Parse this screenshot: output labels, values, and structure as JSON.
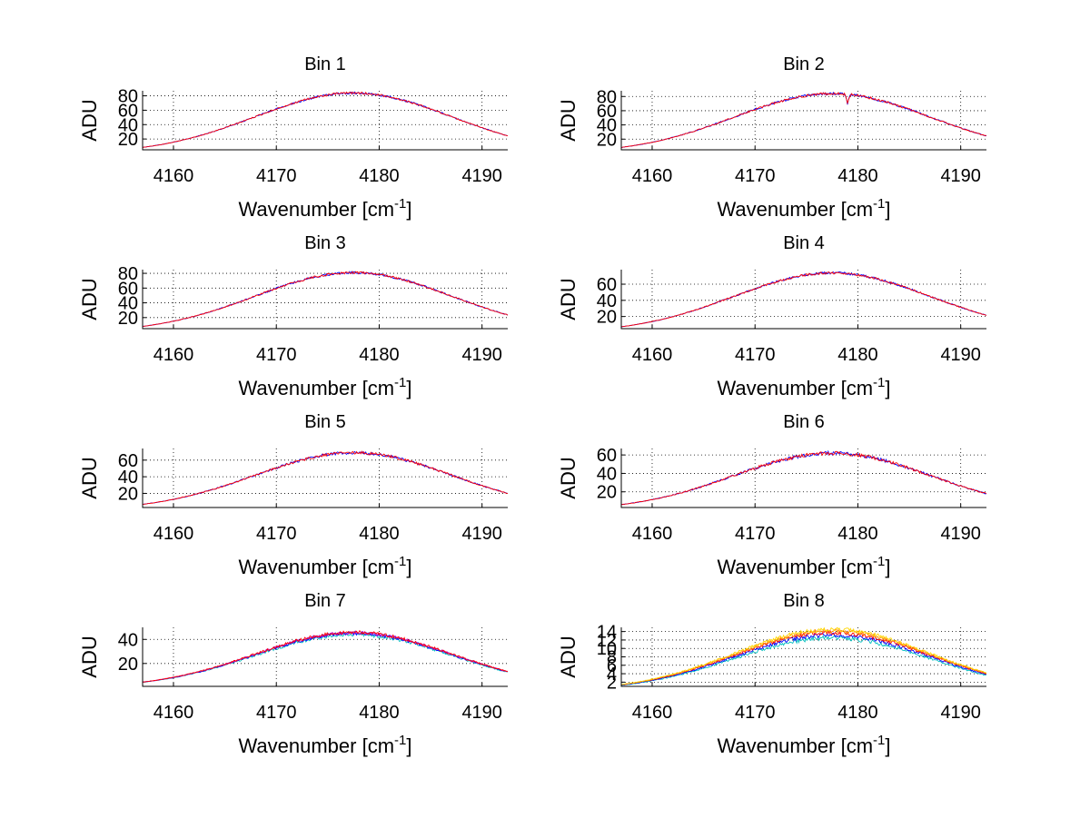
{
  "chart_data": [
    {
      "type": "line",
      "title": "Bin 1",
      "xlabel": "Wavenumber [cm",
      "xlabel_sup": "-1",
      "xlabel_end": "]",
      "ylabel": "ADU",
      "xlim": [
        4157,
        4192.5
      ],
      "ylim": [
        5,
        87
      ],
      "xticks": [
        4160,
        4170,
        4180,
        4190
      ],
      "yticks": [
        20,
        40,
        60,
        80
      ],
      "grid": true,
      "series": [
        {
          "color": "#0000ff",
          "shape": {
            "center": 4177.5,
            "width": 13.5,
            "peak": 84,
            "noise": 1.5,
            "dip_at": null,
            "dip_depth": 0
          },
          "x": [],
          "y": []
        },
        {
          "color": "#ff0000",
          "shape": {
            "center": 4177.5,
            "width": 13.5,
            "peak": 84,
            "noise": 1.5,
            "dip_at": null,
            "dip_depth": 0
          },
          "x": [],
          "y": []
        }
      ]
    },
    {
      "type": "line",
      "title": "Bin 2",
      "xlabel": "Wavenumber [cm",
      "xlabel_sup": "-1",
      "xlabel_end": "]",
      "ylabel": "ADU",
      "xlim": [
        4157,
        4192.5
      ],
      "ylim": [
        5,
        88
      ],
      "xticks": [
        4160,
        4170,
        4180,
        4190
      ],
      "yticks": [
        20,
        40,
        60,
        80
      ],
      "grid": true,
      "series": [
        {
          "color": "#0000ff",
          "shape": {
            "center": 4177.5,
            "width": 13.5,
            "peak": 84,
            "noise": 1.8,
            "dip_at": 4179,
            "dip_depth": 14
          },
          "x": [],
          "y": []
        },
        {
          "color": "#ff0000",
          "shape": {
            "center": 4177.5,
            "width": 13.5,
            "peak": 84,
            "noise": 1.8,
            "dip_at": 4179,
            "dip_depth": 14
          },
          "x": [],
          "y": []
        }
      ]
    },
    {
      "type": "line",
      "title": "Bin 3",
      "xlabel": "Wavenumber [cm",
      "xlabel_sup": "-1",
      "xlabel_end": "]",
      "ylabel": "ADU",
      "xlim": [
        4157,
        4192.5
      ],
      "ylim": [
        5,
        85
      ],
      "xticks": [
        4160,
        4170,
        4180,
        4190
      ],
      "yticks": [
        20,
        40,
        60,
        80
      ],
      "grid": true,
      "series": [
        {
          "color": "#0000ff",
          "shape": {
            "center": 4177.5,
            "width": 13.5,
            "peak": 81,
            "noise": 1.6,
            "dip_at": null,
            "dip_depth": 0
          },
          "x": [],
          "y": []
        },
        {
          "color": "#ff0000",
          "shape": {
            "center": 4177.5,
            "width": 13.5,
            "peak": 81,
            "noise": 1.6,
            "dip_at": null,
            "dip_depth": 0
          },
          "x": [],
          "y": []
        }
      ]
    },
    {
      "type": "line",
      "title": "Bin 4",
      "xlabel": "Wavenumber [cm",
      "xlabel_sup": "-1",
      "xlabel_end": "]",
      "ylabel": "ADU",
      "xlim": [
        4157,
        4192.5
      ],
      "ylim": [
        5,
        78
      ],
      "xticks": [
        4160,
        4170,
        4180,
        4190
      ],
      "yticks": [
        20,
        40,
        60
      ],
      "grid": true,
      "series": [
        {
          "color": "#0000ff",
          "shape": {
            "center": 4177.5,
            "width": 13.5,
            "peak": 74,
            "noise": 1.5,
            "dip_at": null,
            "dip_depth": 0
          },
          "x": [],
          "y": []
        },
        {
          "color": "#ff0000",
          "shape": {
            "center": 4177.5,
            "width": 13.5,
            "peak": 74,
            "noise": 1.5,
            "dip_at": null,
            "dip_depth": 0
          },
          "x": [],
          "y": []
        }
      ]
    },
    {
      "type": "line",
      "title": "Bin 5",
      "xlabel": "Wavenumber [cm",
      "xlabel_sup": "-1",
      "xlabel_end": "]",
      "ylabel": "ADU",
      "xlim": [
        4157,
        4192.5
      ],
      "ylim": [
        3,
        74
      ],
      "xticks": [
        4160,
        4170,
        4180,
        4190
      ],
      "yticks": [
        20,
        40,
        60
      ],
      "grid": true,
      "series": [
        {
          "color": "#0000ff",
          "shape": {
            "center": 4177.5,
            "width": 13.5,
            "peak": 69,
            "noise": 1.8,
            "dip_at": null,
            "dip_depth": 0
          },
          "x": [],
          "y": []
        },
        {
          "color": "#ff0000",
          "shape": {
            "center": 4177.5,
            "width": 13.5,
            "peak": 69,
            "noise": 1.8,
            "dip_at": null,
            "dip_depth": 0
          },
          "x": [],
          "y": []
        }
      ]
    },
    {
      "type": "line",
      "title": "Bin 6",
      "xlabel": "Wavenumber [cm",
      "xlabel_sup": "-1",
      "xlabel_end": "]",
      "ylabel": "ADU",
      "xlim": [
        4157,
        4192.5
      ],
      "ylim": [
        3,
        67
      ],
      "xticks": [
        4160,
        4170,
        4180,
        4190
      ],
      "yticks": [
        20,
        40,
        60
      ],
      "grid": true,
      "series": [
        {
          "color": "#0000ff",
          "shape": {
            "center": 4177.5,
            "width": 13.5,
            "peak": 62,
            "noise": 2.0,
            "dip_at": null,
            "dip_depth": 0
          },
          "x": [],
          "y": []
        },
        {
          "color": "#ff0000",
          "shape": {
            "center": 4177.5,
            "width": 13.5,
            "peak": 62,
            "noise": 2.0,
            "dip_at": null,
            "dip_depth": 0
          },
          "x": [],
          "y": []
        }
      ]
    },
    {
      "type": "line",
      "title": "Bin 7",
      "xlabel": "Wavenumber [cm",
      "xlabel_sup": "-1",
      "xlabel_end": "]",
      "ylabel": "ADU",
      "xlim": [
        4157,
        4192.5
      ],
      "ylim": [
        1,
        50
      ],
      "xticks": [
        4160,
        4170,
        4180,
        4190
      ],
      "yticks": [
        20,
        40
      ],
      "grid": true,
      "series": [
        {
          "color": "#00bfbf",
          "shape": {
            "center": 4177.5,
            "width": 13.5,
            "peak": 44,
            "noise": 1.4,
            "dip_at": null,
            "dip_depth": 0
          },
          "x": [],
          "y": []
        },
        {
          "color": "#0000ff",
          "shape": {
            "center": 4177.5,
            "width": 13.5,
            "peak": 45,
            "noise": 1.4,
            "dip_at": null,
            "dip_depth": 0
          },
          "x": [],
          "y": []
        },
        {
          "color": "#bf00bf",
          "shape": {
            "center": 4177.5,
            "width": 13.5,
            "peak": 45.5,
            "noise": 1.4,
            "dip_at": null,
            "dip_depth": 0
          },
          "x": [],
          "y": []
        },
        {
          "color": "#ff0000",
          "shape": {
            "center": 4177.5,
            "width": 13.5,
            "peak": 46,
            "noise": 1.4,
            "dip_at": null,
            "dip_depth": 0
          },
          "x": [],
          "y": []
        }
      ]
    },
    {
      "type": "line",
      "title": "Bin 8",
      "xlabel": "Wavenumber [cm",
      "xlabel_sup": "-1",
      "xlabel_end": "]",
      "ylabel": "ADU",
      "xlim": [
        4157,
        4192.5
      ],
      "ylim": [
        1,
        15
      ],
      "xticks": [
        4160,
        4170,
        4180,
        4190
      ],
      "yticks": [
        2,
        4,
        6,
        8,
        10,
        12,
        14
      ],
      "grid": true,
      "series": [
        {
          "color": "#00bfbf",
          "shape": {
            "center": 4177.5,
            "width": 13.5,
            "peak": 12.5,
            "noise": 0.5,
            "dip_at": null,
            "dip_depth": 0
          },
          "x": [],
          "y": []
        },
        {
          "color": "#0000ff",
          "shape": {
            "center": 4177.5,
            "width": 13.5,
            "peak": 13.2,
            "noise": 0.5,
            "dip_at": null,
            "dip_depth": 0
          },
          "x": [],
          "y": []
        },
        {
          "color": "#ff0000",
          "shape": {
            "center": 4177.5,
            "width": 13.5,
            "peak": 13.8,
            "noise": 0.5,
            "dip_at": null,
            "dip_depth": 0
          },
          "x": [],
          "y": []
        },
        {
          "color": "#ff8c00",
          "shape": {
            "center": 4177.5,
            "width": 13.5,
            "peak": 14.2,
            "noise": 0.5,
            "dip_at": null,
            "dip_depth": 0
          },
          "x": [],
          "y": []
        },
        {
          "color": "#ffd700",
          "shape": {
            "center": 4177.5,
            "width": 13.5,
            "peak": 14.5,
            "noise": 0.5,
            "dip_at": null,
            "dip_depth": 0
          },
          "x": [],
          "y": []
        }
      ]
    }
  ]
}
